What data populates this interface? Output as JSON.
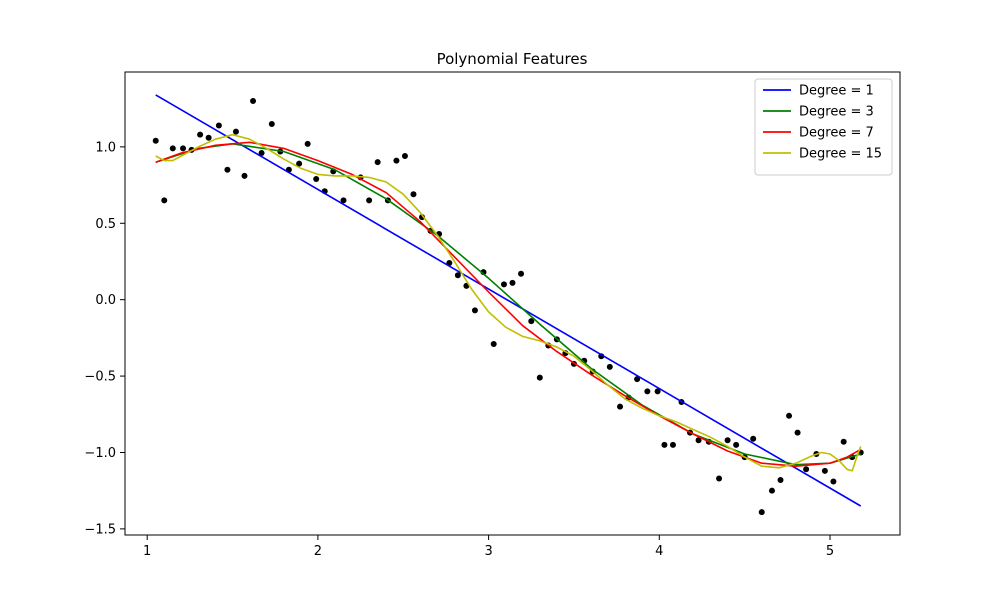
{
  "chart_data": {
    "type": "line",
    "title": "Polynomial Features",
    "xlabel": "",
    "ylabel": "",
    "xlim": [
      0.87,
      5.41
    ],
    "ylim": [
      -1.54,
      1.49
    ],
    "xticks": [
      1,
      2,
      3,
      4,
      5
    ],
    "yticks": [
      -1.5,
      -1.0,
      -0.5,
      0.0,
      0.5,
      1.0
    ],
    "ytick_labels": [
      "−1.5",
      "−1.0",
      "−0.5",
      "0.0",
      "0.5",
      "1.0"
    ],
    "xtick_labels": [
      "1",
      "2",
      "3",
      "4",
      "5"
    ],
    "grid": false,
    "legend_position": "top-right",
    "scatter": {
      "color": "#000000",
      "x": [
        1.05,
        1.1,
        1.15,
        1.21,
        1.26,
        1.31,
        1.36,
        1.42,
        1.47,
        1.52,
        1.57,
        1.62,
        1.67,
        1.73,
        1.78,
        1.83,
        1.89,
        1.94,
        1.99,
        2.04,
        2.09,
        2.15,
        2.25,
        2.3,
        2.35,
        2.41,
        2.46,
        2.51,
        2.56,
        2.61,
        2.66,
        2.71,
        2.77,
        2.82,
        2.87,
        2.92,
        2.97,
        3.03,
        3.09,
        3.14,
        3.19,
        3.25,
        3.3,
        3.35,
        3.4,
        3.45,
        3.5,
        3.56,
        3.61,
        3.66,
        3.71,
        3.77,
        3.82,
        3.87,
        3.93,
        3.99,
        4.03,
        4.08,
        4.13,
        4.18,
        4.23,
        4.29,
        4.35,
        4.4,
        4.45,
        4.5,
        4.55,
        4.6,
        4.66,
        4.71,
        4.76,
        4.81,
        4.86,
        4.92,
        4.97,
        5.02,
        5.08,
        5.13,
        5.18
      ],
      "y": [
        1.04,
        0.65,
        0.99,
        0.99,
        0.98,
        1.08,
        1.06,
        1.14,
        0.85,
        1.1,
        0.81,
        1.3,
        0.96,
        1.15,
        0.97,
        0.85,
        0.89,
        1.02,
        0.79,
        0.71,
        0.84,
        0.65,
        0.8,
        0.65,
        0.9,
        0.65,
        0.91,
        0.94,
        0.69,
        0.54,
        0.45,
        0.43,
        0.24,
        0.16,
        0.09,
        -0.07,
        0.18,
        -0.29,
        0.1,
        0.11,
        0.17,
        -0.14,
        -0.51,
        -0.3,
        -0.26,
        -0.35,
        -0.42,
        -0.4,
        -0.47,
        -0.37,
        -0.44,
        -0.7,
        -0.64,
        -0.52,
        -0.6,
        -0.6,
        -0.95,
        -0.95,
        -0.67,
        -0.87,
        -0.92,
        -0.93,
        -1.17,
        -0.92,
        -0.95,
        -1.03,
        -0.91,
        -1.39,
        -1.25,
        -1.18,
        -0.76,
        -0.87,
        -1.11,
        -1.01,
        -1.12,
        -1.19,
        -0.93,
        -1.03,
        -1.0
      ]
    },
    "series": [
      {
        "name": "Degree = 1",
        "color": "#0000ff",
        "x": [
          1.05,
          5.18
        ],
        "y": [
          1.34,
          -1.35
        ]
      },
      {
        "name": "Degree = 3",
        "color": "#008000",
        "x": [
          1.05,
          1.3,
          1.5,
          1.8,
          2.1,
          2.4,
          2.7,
          3.0,
          3.3,
          3.6,
          3.9,
          4.2,
          4.5,
          4.8,
          5.0,
          5.18
        ],
        "y": [
          0.9,
          0.99,
          1.02,
          0.97,
          0.85,
          0.66,
          0.42,
          0.14,
          -0.16,
          -0.45,
          -0.69,
          -0.88,
          -1.01,
          -1.08,
          -1.07,
          -1.01
        ]
      },
      {
        "name": "Degree = 7",
        "color": "#ff0000",
        "x": [
          1.05,
          1.2,
          1.4,
          1.6,
          1.8,
          2.0,
          2.2,
          2.4,
          2.6,
          2.8,
          3.0,
          3.2,
          3.4,
          3.6,
          3.8,
          4.0,
          4.2,
          4.4,
          4.6,
          4.8,
          5.0,
          5.1,
          5.18
        ],
        "y": [
          0.9,
          0.96,
          1.01,
          1.03,
          0.99,
          0.91,
          0.82,
          0.7,
          0.51,
          0.28,
          0.05,
          -0.17,
          -0.34,
          -0.49,
          -0.63,
          -0.76,
          -0.88,
          -0.99,
          -1.07,
          -1.09,
          -1.07,
          -1.03,
          -0.98
        ]
      },
      {
        "name": "Degree = 15",
        "color": "#bfbf00",
        "x": [
          1.05,
          1.1,
          1.15,
          1.2,
          1.3,
          1.4,
          1.5,
          1.6,
          1.7,
          1.8,
          1.9,
          2.0,
          2.1,
          2.2,
          2.3,
          2.4,
          2.5,
          2.6,
          2.7,
          2.8,
          2.9,
          3.0,
          3.1,
          3.2,
          3.3,
          3.4,
          3.5,
          3.6,
          3.7,
          3.8,
          3.9,
          4.0,
          4.1,
          4.2,
          4.3,
          4.4,
          4.5,
          4.6,
          4.7,
          4.8,
          4.9,
          4.95,
          5.0,
          5.05,
          5.1,
          5.13,
          5.16,
          5.18
        ],
        "y": [
          0.94,
          0.91,
          0.91,
          0.94,
          1.0,
          1.05,
          1.08,
          1.05,
          0.99,
          0.92,
          0.86,
          0.82,
          0.81,
          0.81,
          0.8,
          0.77,
          0.69,
          0.57,
          0.42,
          0.25,
          0.07,
          -0.08,
          -0.18,
          -0.24,
          -0.27,
          -0.31,
          -0.37,
          -0.46,
          -0.56,
          -0.65,
          -0.71,
          -0.76,
          -0.8,
          -0.85,
          -0.9,
          -0.96,
          -1.03,
          -1.09,
          -1.1,
          -1.07,
          -1.02,
          -1.0,
          -1.01,
          -1.05,
          -1.11,
          -1.12,
          -1.02,
          -0.96
        ]
      }
    ]
  }
}
